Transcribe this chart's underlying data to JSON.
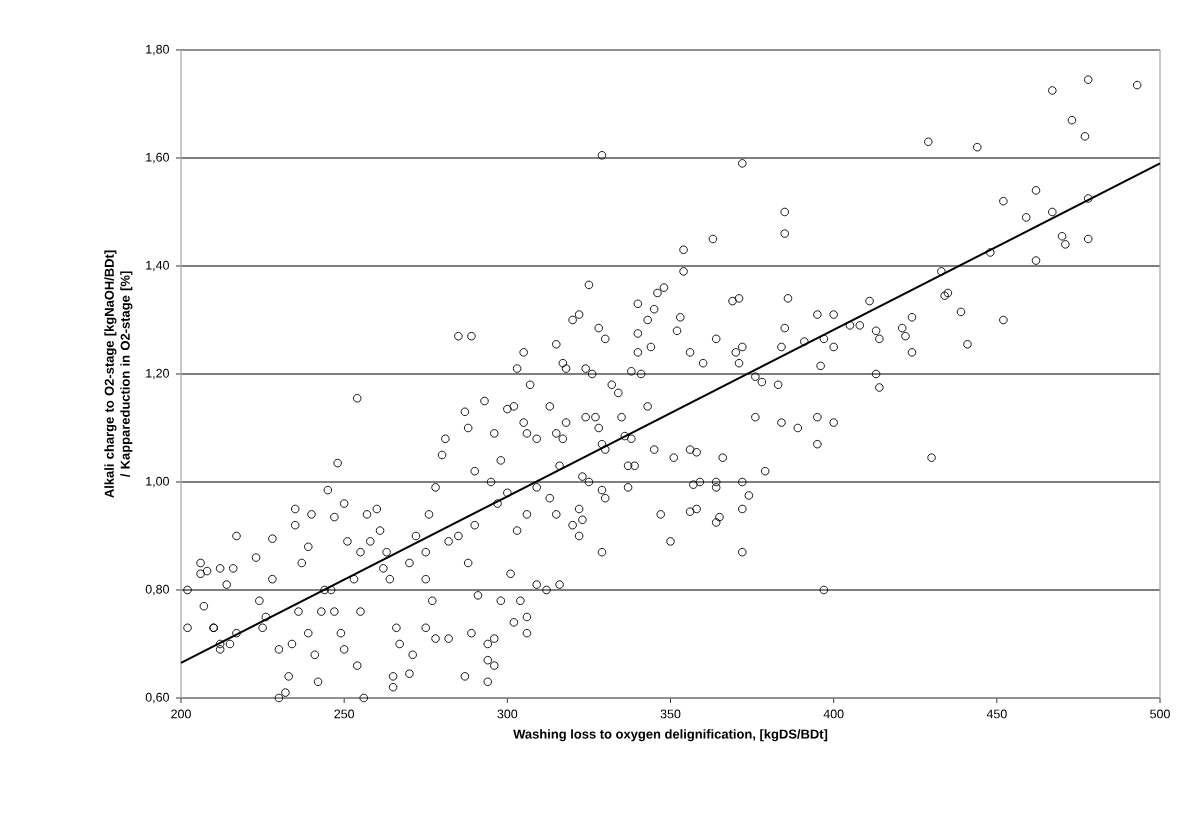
{
  "chart_data": {
    "type": "scatter",
    "xlabel": "Washing loss to oxygen delignification, [kgDS/BDt]",
    "ylabel": "Alkali charge to O2-stage [kgNaOH/BDt] / Kappareduction in O2-stage [%]",
    "xlim": [
      200,
      500
    ],
    "ylim": [
      0.6,
      1.8
    ],
    "xticks": [
      200,
      250,
      300,
      350,
      400,
      450,
      500
    ],
    "yticks": [
      {
        "value": 0.6,
        "label": "0,60"
      },
      {
        "value": 0.8,
        "label": "0,80"
      },
      {
        "value": 1.0,
        "label": "1,00"
      },
      {
        "value": 1.2,
        "label": "1,20"
      },
      {
        "value": 1.4,
        "label": "1,40"
      },
      {
        "value": 1.6,
        "label": "1,60"
      },
      {
        "value": 1.8,
        "label": "1,80"
      }
    ],
    "grid": "y",
    "series": [
      {
        "marker": "circle",
        "color": "#000000",
        "x": [
          493,
          478,
          467,
          473,
          477,
          429,
          444,
          462,
          452,
          478,
          459,
          467,
          470,
          471,
          478,
          462,
          448,
          433,
          434,
          435,
          439,
          441,
          452,
          424,
          421,
          422,
          424,
          413,
          414,
          413,
          414,
          411,
          408,
          405,
          400,
          395,
          400,
          397,
          391,
          396,
          386,
          385,
          384,
          385,
          385,
          372,
          329,
          430,
          397,
          395,
          395,
          400,
          389,
          384,
          383,
          378,
          376,
          376,
          374,
          372,
          372,
          372,
          379,
          371,
          369,
          370,
          372,
          371,
          363,
          364,
          360,
          366,
          364,
          364,
          365,
          364,
          356,
          356,
          358,
          357,
          359,
          358,
          356,
          354,
          354,
          352,
          353,
          348,
          346,
          345,
          344,
          343,
          341,
          343,
          347,
          351,
          350,
          345,
          340,
          340,
          340,
          338,
          335,
          336,
          338,
          339,
          337,
          337,
          334,
          332,
          330,
          328,
          325,
          322,
          320,
          324,
          324,
          326,
          327,
          328,
          329,
          330,
          329,
          330,
          329,
          322,
          323,
          320,
          322,
          325,
          323,
          315,
          317,
          318,
          313,
          315,
          317,
          318,
          316,
          313,
          315,
          316,
          312,
          309,
          307,
          305,
          303,
          302,
          300,
          305,
          306,
          309,
          309,
          306,
          303,
          301,
          304,
          306,
          306,
          302,
          298,
          296,
          294,
          294,
          294,
          296,
          293,
          296,
          298,
          295,
          297,
          300,
          290,
          290,
          288,
          287,
          285,
          289,
          287,
          289,
          291,
          288,
          285,
          282,
          281,
          280,
          278,
          276,
          275,
          272,
          270,
          275,
          277,
          275,
          278,
          282,
          271,
          270,
          265,
          265,
          267,
          266,
          264,
          262,
          263,
          261,
          260,
          257,
          258,
          254,
          248,
          250,
          245,
          247,
          251,
          255,
          253,
          255,
          256,
          254,
          250,
          249,
          247,
          246,
          244,
          243,
          242,
          241,
          239,
          239,
          240,
          237,
          235,
          235,
          236,
          234,
          233,
          232,
          230,
          230,
          228,
          228,
          226,
          225,
          224,
          223,
          217,
          216,
          217,
          214,
          212,
          210,
          212,
          208,
          206,
          206,
          207,
          202,
          202,
          210,
          215,
          212
        ],
        "values": [
          1.735,
          1.745,
          1.725,
          1.67,
          1.64,
          1.63,
          1.62,
          1.54,
          1.52,
          1.525,
          1.49,
          1.5,
          1.455,
          1.44,
          1.45,
          1.41,
          1.425,
          1.39,
          1.345,
          1.35,
          1.315,
          1.255,
          1.3,
          1.305,
          1.285,
          1.27,
          1.24,
          1.28,
          1.265,
          1.2,
          1.175,
          1.335,
          1.29,
          1.29,
          1.31,
          1.31,
          1.25,
          1.265,
          1.26,
          1.215,
          1.34,
          1.285,
          1.25,
          1.5,
          1.46,
          1.59,
          1.605,
          1.045,
          0.8,
          1.12,
          1.07,
          1.11,
          1.1,
          1.11,
          1.18,
          1.185,
          1.195,
          1.12,
          0.975,
          1.0,
          0.95,
          0.87,
          1.02,
          1.34,
          1.335,
          1.24,
          1.25,
          1.22,
          1.45,
          1.265,
          1.22,
          1.045,
          1.0,
          0.99,
          0.935,
          0.925,
          1.24,
          1.06,
          1.055,
          0.995,
          1.0,
          0.95,
          0.945,
          1.43,
          1.39,
          1.28,
          1.305,
          1.36,
          1.35,
          1.32,
          1.25,
          1.3,
          1.2,
          1.14,
          0.94,
          1.045,
          0.89,
          1.06,
          1.33,
          1.275,
          1.24,
          1.205,
          1.12,
          1.085,
          1.08,
          1.03,
          1.03,
          0.99,
          1.165,
          1.18,
          1.265,
          1.285,
          1.365,
          1.31,
          1.3,
          1.21,
          1.12,
          1.2,
          1.12,
          1.1,
          1.07,
          1.06,
          0.985,
          0.97,
          0.87,
          0.95,
          0.93,
          0.92,
          0.9,
          1.0,
          1.01,
          1.255,
          1.22,
          1.21,
          1.14,
          1.09,
          1.08,
          1.11,
          1.03,
          0.97,
          0.94,
          0.81,
          0.8,
          0.81,
          1.18,
          1.24,
          1.21,
          1.14,
          1.135,
          1.11,
          1.09,
          1.08,
          0.99,
          0.94,
          0.91,
          0.83,
          0.78,
          0.75,
          0.72,
          0.74,
          0.78,
          0.71,
          0.7,
          0.67,
          0.63,
          0.66,
          1.15,
          1.09,
          1.04,
          1.0,
          0.96,
          0.98,
          1.02,
          0.92,
          1.1,
          1.13,
          1.27,
          1.27,
          0.64,
          0.72,
          0.79,
          0.85,
          0.9,
          0.89,
          1.08,
          1.05,
          0.99,
          0.94,
          0.87,
          0.9,
          0.85,
          0.82,
          0.78,
          0.73,
          0.71,
          0.71,
          0.68,
          0.645,
          0.64,
          0.62,
          0.7,
          0.73,
          0.82,
          0.84,
          0.87,
          0.91,
          0.95,
          0.94,
          0.89,
          1.155,
          1.035,
          0.96,
          0.985,
          0.935,
          0.89,
          0.87,
          0.82,
          0.76,
          0.6,
          0.66,
          0.69,
          0.72,
          0.76,
          0.8,
          0.8,
          0.76,
          0.63,
          0.68,
          0.72,
          0.88,
          0.94,
          0.85,
          0.92,
          0.95,
          0.76,
          0.7,
          0.64,
          0.61,
          0.6,
          0.69,
          0.82,
          0.895,
          0.75,
          0.73,
          0.78,
          0.86,
          0.9,
          0.84,
          0.72,
          0.81,
          0.7,
          0.73,
          0.84,
          0.835,
          0.85,
          0.83,
          0.77,
          0.8,
          0.73,
          0.73,
          0.7,
          0.69
        ]
      },
      {
        "type": "line",
        "marker": "none",
        "color": "#000000",
        "x": [
          200,
          500
        ],
        "values": [
          0.665,
          1.59
        ]
      }
    ]
  }
}
